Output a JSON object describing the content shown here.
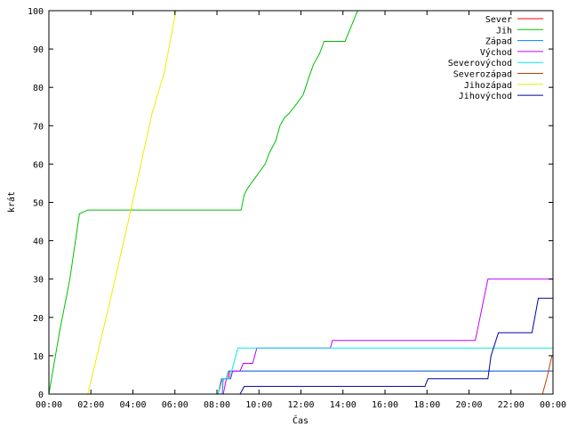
{
  "chart_data": {
    "type": "line",
    "title": "",
    "xlabel": "Čas",
    "ylabel": "krát",
    "xlim": [
      0,
      24
    ],
    "ylim": [
      0,
      100
    ],
    "x_ticks": [
      {
        "v": 0,
        "label": "00:00"
      },
      {
        "v": 2,
        "label": "02:00"
      },
      {
        "v": 4,
        "label": "04:00"
      },
      {
        "v": 6,
        "label": "06:00"
      },
      {
        "v": 8,
        "label": "08:00"
      },
      {
        "v": 10,
        "label": "10:00"
      },
      {
        "v": 12,
        "label": "12:00"
      },
      {
        "v": 14,
        "label": "14:00"
      },
      {
        "v": 16,
        "label": "16:00"
      },
      {
        "v": 18,
        "label": "18:00"
      },
      {
        "v": 20,
        "label": "20:00"
      },
      {
        "v": 22,
        "label": "22:00"
      },
      {
        "v": 24,
        "label": "00:00"
      }
    ],
    "y_ticks": [
      0,
      10,
      20,
      30,
      40,
      50,
      60,
      70,
      80,
      90,
      100
    ],
    "grid": false,
    "legend_position": "top-right",
    "series": [
      {
        "name": "Sever",
        "color": "#ff0000",
        "points": [
          [
            8.05,
            0
          ],
          [
            8.25,
            4
          ],
          [
            8.55,
            4
          ],
          [
            8.6,
            6
          ],
          [
            24,
            6
          ]
        ]
      },
      {
        "name": "Jih",
        "color": "#00c000",
        "points": [
          [
            0,
            0
          ],
          [
            0.5,
            16
          ],
          [
            1.0,
            30
          ],
          [
            1.45,
            47
          ],
          [
            1.85,
            48
          ],
          [
            9.15,
            48
          ],
          [
            9.3,
            52
          ],
          [
            9.5,
            54
          ],
          [
            9.9,
            57
          ],
          [
            10.3,
            60
          ],
          [
            10.5,
            63
          ],
          [
            10.8,
            66
          ],
          [
            11.0,
            70
          ],
          [
            11.2,
            72
          ],
          [
            11.4,
            73
          ],
          [
            11.7,
            75
          ],
          [
            12.1,
            78
          ],
          [
            12.4,
            83
          ],
          [
            12.6,
            86
          ],
          [
            12.9,
            89
          ],
          [
            13.1,
            92
          ],
          [
            14.1,
            92
          ],
          [
            14.4,
            96
          ],
          [
            14.7,
            100
          ]
        ]
      },
      {
        "name": "Západ",
        "color": "#0080ff",
        "points": [
          [
            8.0,
            0
          ],
          [
            8.25,
            0
          ],
          [
            8.3,
            4
          ],
          [
            8.45,
            4
          ],
          [
            8.55,
            6
          ],
          [
            24,
            6
          ]
        ]
      },
      {
        "name": "Východ",
        "color": "#c000ff",
        "points": [
          [
            8.3,
            0
          ],
          [
            8.45,
            4
          ],
          [
            8.65,
            4
          ],
          [
            8.75,
            6
          ],
          [
            9.1,
            6
          ],
          [
            9.25,
            8
          ],
          [
            9.7,
            8
          ],
          [
            9.9,
            12
          ],
          [
            13.4,
            12
          ],
          [
            13.5,
            14
          ],
          [
            20.3,
            14
          ],
          [
            20.9,
            30
          ],
          [
            24,
            30
          ]
        ]
      },
      {
        "name": "Severovýchod",
        "color": "#00eeee",
        "points": [
          [
            8.05,
            0
          ],
          [
            8.2,
            4
          ],
          [
            8.6,
            4
          ],
          [
            9.0,
            12
          ],
          [
            24,
            12
          ]
        ]
      },
      {
        "name": "Severozápad",
        "color": "#c04000",
        "points": [
          [
            23.5,
            0
          ],
          [
            23.7,
            4
          ],
          [
            23.95,
            10
          ],
          [
            24,
            10
          ]
        ]
      },
      {
        "name": "Jihozápad",
        "color": "#eeee00",
        "points": [
          [
            1.85,
            0
          ],
          [
            2.9,
            24
          ],
          [
            3.9,
            48
          ],
          [
            4.9,
            73
          ],
          [
            5.5,
            84
          ],
          [
            6.05,
            100
          ]
        ]
      },
      {
        "name": "Jihovýchod",
        "color": "#0000a0",
        "points": [
          [
            9.1,
            0
          ],
          [
            9.3,
            2
          ],
          [
            17.9,
            2
          ],
          [
            18.05,
            4
          ],
          [
            20.9,
            4
          ],
          [
            21.05,
            10
          ],
          [
            21.4,
            16
          ],
          [
            23.0,
            16
          ],
          [
            23.3,
            25
          ],
          [
            24,
            25
          ]
        ]
      }
    ]
  }
}
